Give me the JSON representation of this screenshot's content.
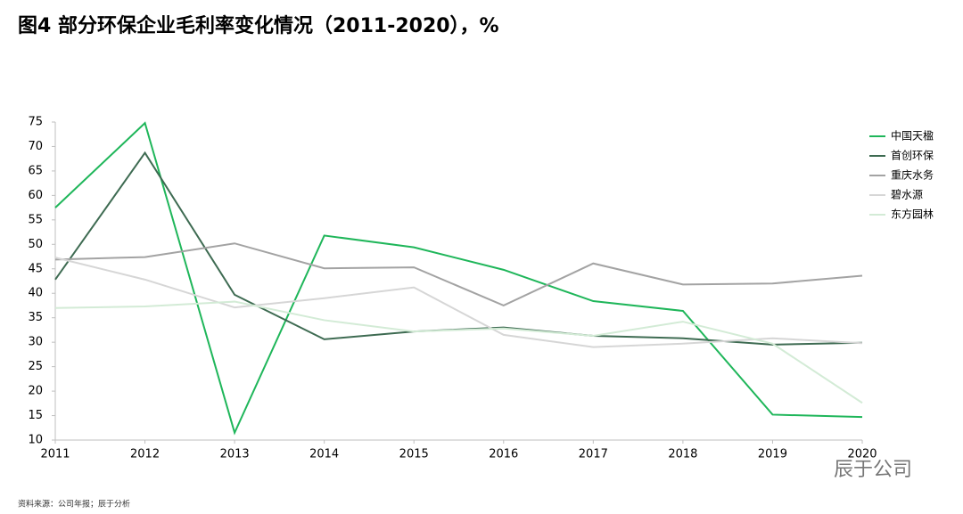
{
  "chart_data": {
    "type": "line",
    "title": "图4   部分环保企业毛利率变化情况（2011-2020），%",
    "categories": [
      "2011",
      "2012",
      "2013",
      "2014",
      "2015",
      "2016",
      "2017",
      "2018",
      "2019",
      "2020"
    ],
    "series": [
      {
        "name": "中国天楹",
        "color": "#1fb65a",
        "values": [
          57.5,
          74.8,
          11.5,
          51.8,
          49.4,
          44.8,
          38.4,
          36.4,
          15.2,
          14.7
        ]
      },
      {
        "name": "首创环保",
        "color": "#3e6b52",
        "values": [
          42.8,
          68.7,
          39.7,
          30.6,
          32.2,
          33.0,
          31.3,
          30.8,
          29.5,
          29.9
        ]
      },
      {
        "name": "重庆水务",
        "color": "#a3a3a3",
        "values": [
          46.9,
          47.4,
          50.2,
          45.1,
          45.3,
          37.5,
          46.1,
          41.8,
          42.0,
          43.6
        ]
      },
      {
        "name": "碧水源",
        "color": "#d6d6d6",
        "values": [
          47.3,
          42.8,
          37.1,
          39.0,
          41.2,
          31.5,
          29.0,
          29.7,
          30.8,
          29.8
        ]
      },
      {
        "name": "东方园林",
        "color": "#d3ebd6",
        "values": [
          37.0,
          37.3,
          38.3,
          34.5,
          32.2,
          32.8,
          31.3,
          34.2,
          29.7,
          17.6
        ]
      }
    ],
    "ylim": [
      10,
      75
    ],
    "yticks": [
      10,
      15,
      20,
      25,
      30,
      35,
      40,
      45,
      50,
      55,
      60,
      65,
      70,
      75
    ],
    "legend": "right",
    "source": "资料来源：公司年报；辰于分析",
    "watermark": "辰于公司"
  }
}
